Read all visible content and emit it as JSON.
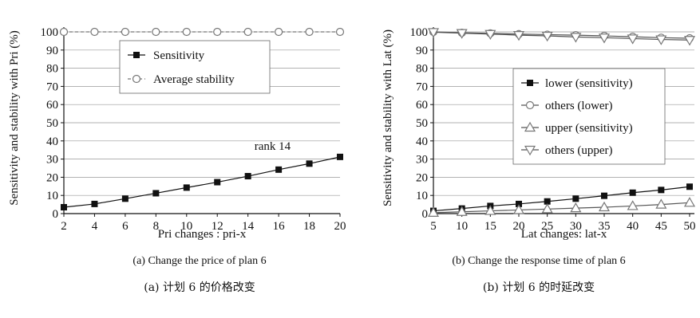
{
  "chart_data": [
    {
      "type": "line",
      "ylabel": "Sensitivity and stability with Pri (%)",
      "xlabel": "Pri changes : pri-x",
      "x": [
        2,
        4,
        6,
        8,
        10,
        12,
        14,
        16,
        18,
        20
      ],
      "xlim": [
        2,
        20
      ],
      "ylim": [
        0,
        100
      ],
      "yticks": [
        0,
        10,
        20,
        30,
        40,
        50,
        60,
        70,
        80,
        90,
        100
      ],
      "grid": "horizontal",
      "legend_position": "top-center",
      "series": [
        {
          "name": "Sensitivity",
          "marker": "filled-square",
          "line": "solid",
          "values": [
            3.5,
            5.3,
            8.2,
            11.2,
            14.3,
            17.3,
            20.6,
            24.2,
            27.5,
            31.2
          ]
        },
        {
          "name": "Average stability",
          "marker": "open-circle",
          "line": "dashed",
          "values": [
            100,
            100,
            100,
            100,
            100,
            100,
            100,
            100,
            100,
            100
          ]
        }
      ],
      "annotations": [
        {
          "text": "rank 14",
          "x": 15.6,
          "y": 35
        }
      ],
      "caption": "(a) Change the price of plan 6",
      "caption_cn": "(a)  计划 6 的价格改变"
    },
    {
      "type": "line",
      "ylabel": "Sensitivity and stability with Lat (%)",
      "xlabel": "Lat changes: lat-x",
      "x": [
        5,
        10,
        15,
        20,
        25,
        30,
        35,
        40,
        45,
        50
      ],
      "xlim": [
        5,
        50
      ],
      "ylim": [
        0,
        100
      ],
      "yticks": [
        0,
        10,
        20,
        30,
        40,
        50,
        60,
        70,
        80,
        90,
        100
      ],
      "grid": "horizontal",
      "legend_position": "center-right",
      "series": [
        {
          "name": "lower (sensitivity)",
          "marker": "filled-square",
          "line": "solid",
          "values": [
            1.5,
            2.8,
            4.2,
            5.3,
            6.7,
            8.2,
            9.8,
            11.5,
            13,
            14.8
          ]
        },
        {
          "name": "others (lower)",
          "marker": "open-circle",
          "line": "solid",
          "values": [
            100,
            99.5,
            99.2,
            98.8,
            98.5,
            98.2,
            97.8,
            97.3,
            96.8,
            96.5
          ]
        },
        {
          "name": "upper (sensitivity)",
          "marker": "open-triangle-up",
          "line": "solid",
          "values": [
            0.5,
            1.0,
            1.5,
            2.0,
            2.5,
            3.0,
            3.5,
            4.2,
            5.0,
            6.0
          ]
        },
        {
          "name": "others (upper)",
          "marker": "open-triangle-down",
          "line": "solid",
          "values": [
            99.8,
            99.3,
            98.8,
            98.2,
            97.8,
            97.2,
            96.8,
            96.3,
            95.8,
            95.5
          ]
        }
      ],
      "caption": "(b) Change the response time of plan 6",
      "caption_cn": "(b)  计划 6 的时延改变"
    }
  ],
  "colors": {
    "axis": "#111111",
    "grid": "#999999",
    "marker_fill": "#111111",
    "open_marker_stroke": "#777777"
  }
}
